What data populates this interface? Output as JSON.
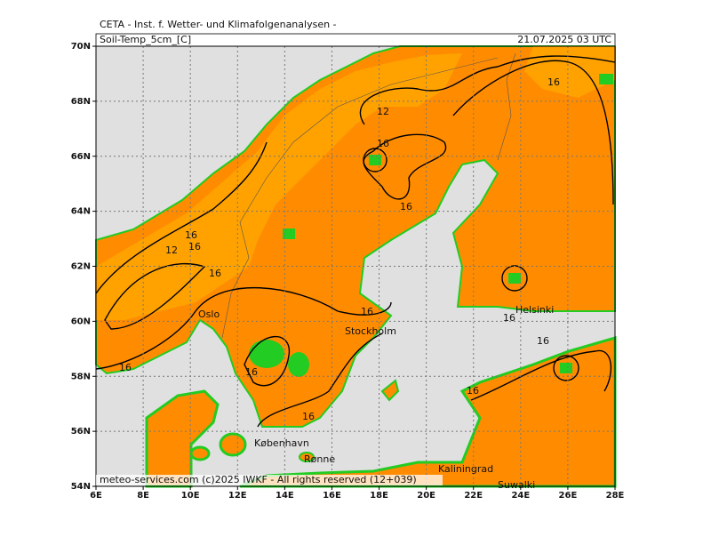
{
  "header": {
    "institute": "CETA - Inst. f. Wetter- und Klimafolgenanalysen -",
    "parameter": "Soil-Temp_5cm_[C]",
    "valid_time": "21.07.2025 03 UTC"
  },
  "axes": {
    "latitudes": [
      "70N",
      "68N",
      "66N",
      "64N",
      "62N",
      "60N",
      "58N",
      "56N",
      "54N"
    ],
    "longitudes": [
      "6E",
      "8E",
      "10E",
      "12E",
      "14E",
      "16E",
      "18E",
      "20E",
      "22E",
      "24E",
      "26E",
      "28E"
    ]
  },
  "cities": [
    "Oslo",
    "Stockholm",
    "Helsinki",
    "København",
    "Rønne",
    "Kaliningrad",
    "Suwalki"
  ],
  "contour_labels": [
    "16",
    "12",
    "16",
    "16",
    "16",
    "16",
    "12",
    "16",
    "16",
    "16",
    "16",
    "16",
    "16",
    "16",
    "16"
  ],
  "footer": "meteo-services.com (c)2025 IWKF - All rights reserved (12+039)"
}
